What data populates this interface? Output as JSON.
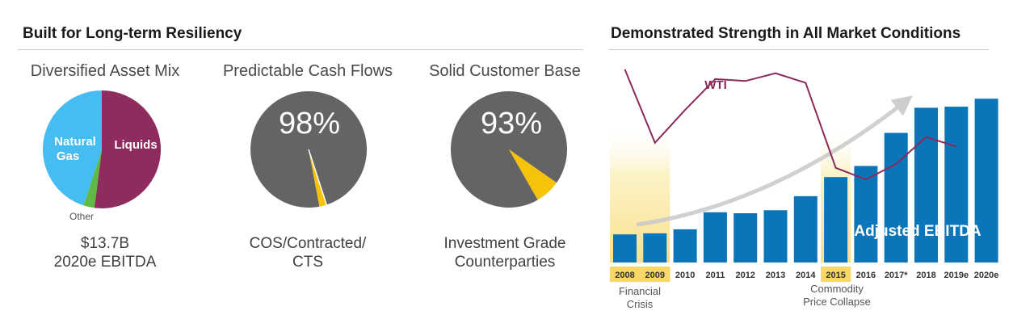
{
  "left_section": {
    "title": "Built for Long-term Resiliency"
  },
  "right_section": {
    "title": "Demonstrated Strength in All Market Conditions"
  },
  "colors": {
    "liquids": "#8e2c5e",
    "natural_gas": "#45bdf0",
    "other": "#5fb944",
    "pie_gray": "#646464",
    "pie_accent": "#f6c20a",
    "bar": "#0a75b8",
    "highlight": "#fbe9a0",
    "wti_line": "#8a2a5a",
    "trend_arrow": "#c9c9c9"
  },
  "pies": [
    {
      "title": "Diversified Asset Mix",
      "caption_line1": "$13.7B",
      "caption_line2": "2020e EBITDA",
      "slices": [
        {
          "label": "Liquids",
          "value": 52,
          "color_key": "liquids"
        },
        {
          "label": "Other",
          "value": 3,
          "color_key": "other"
        },
        {
          "label": "Natural\nGas",
          "value": 45,
          "color_key": "natural_gas"
        }
      ],
      "slice_labels": {
        "liquids": "Liquids",
        "gas_line1": "Natural",
        "gas_line2": "Gas",
        "other": "Other"
      }
    },
    {
      "title": "Predictable Cash Flows",
      "percent_label": "98%",
      "caption_line1": "COS/Contracted/",
      "caption_line2": "CTS",
      "main_value": 98,
      "accent_value": 2
    },
    {
      "title": "Solid Customer Base",
      "percent_label": "93%",
      "caption_line1": "Investment Grade",
      "caption_line2": "Counterparties",
      "main_value": 93,
      "accent_value": 7
    }
  ],
  "chart_data": {
    "type": "bar",
    "title": "Demonstrated Strength in All Market Conditions",
    "categories": [
      "2008",
      "2009",
      "2010",
      "2011",
      "2012",
      "2013",
      "2014",
      "2015",
      "2016",
      "2017*",
      "2018",
      "2019e",
      "2020e"
    ],
    "series": [
      {
        "name": "Adjusted EBITDA",
        "values": [
          2.8,
          2.9,
          3.3,
          5.0,
          4.9,
          5.2,
          6.6,
          8.5,
          9.6,
          12.9,
          15.4,
          15.5,
          16.3
        ]
      },
      {
        "name": "WTI",
        "values": [
          100,
          62,
          79,
          95,
          94,
          98,
          93,
          49,
          43,
          51,
          65,
          60,
          null
        ]
      }
    ],
    "series_labels": {
      "ebitda": "Adjusted EBITDA",
      "wti": "WTI"
    },
    "highlighted_categories": [
      "2008",
      "2009",
      "2015"
    ],
    "annotations": {
      "financial_crisis_line1": "Financial",
      "financial_crisis_line2": "Crisis",
      "commodity_line1": "Commodity",
      "commodity_line2": "Price Collapse"
    },
    "xlabel": "",
    "ylabel": "",
    "ylim": [
      0,
      18
    ],
    "wti_ylim": [
      0,
      110
    ]
  }
}
